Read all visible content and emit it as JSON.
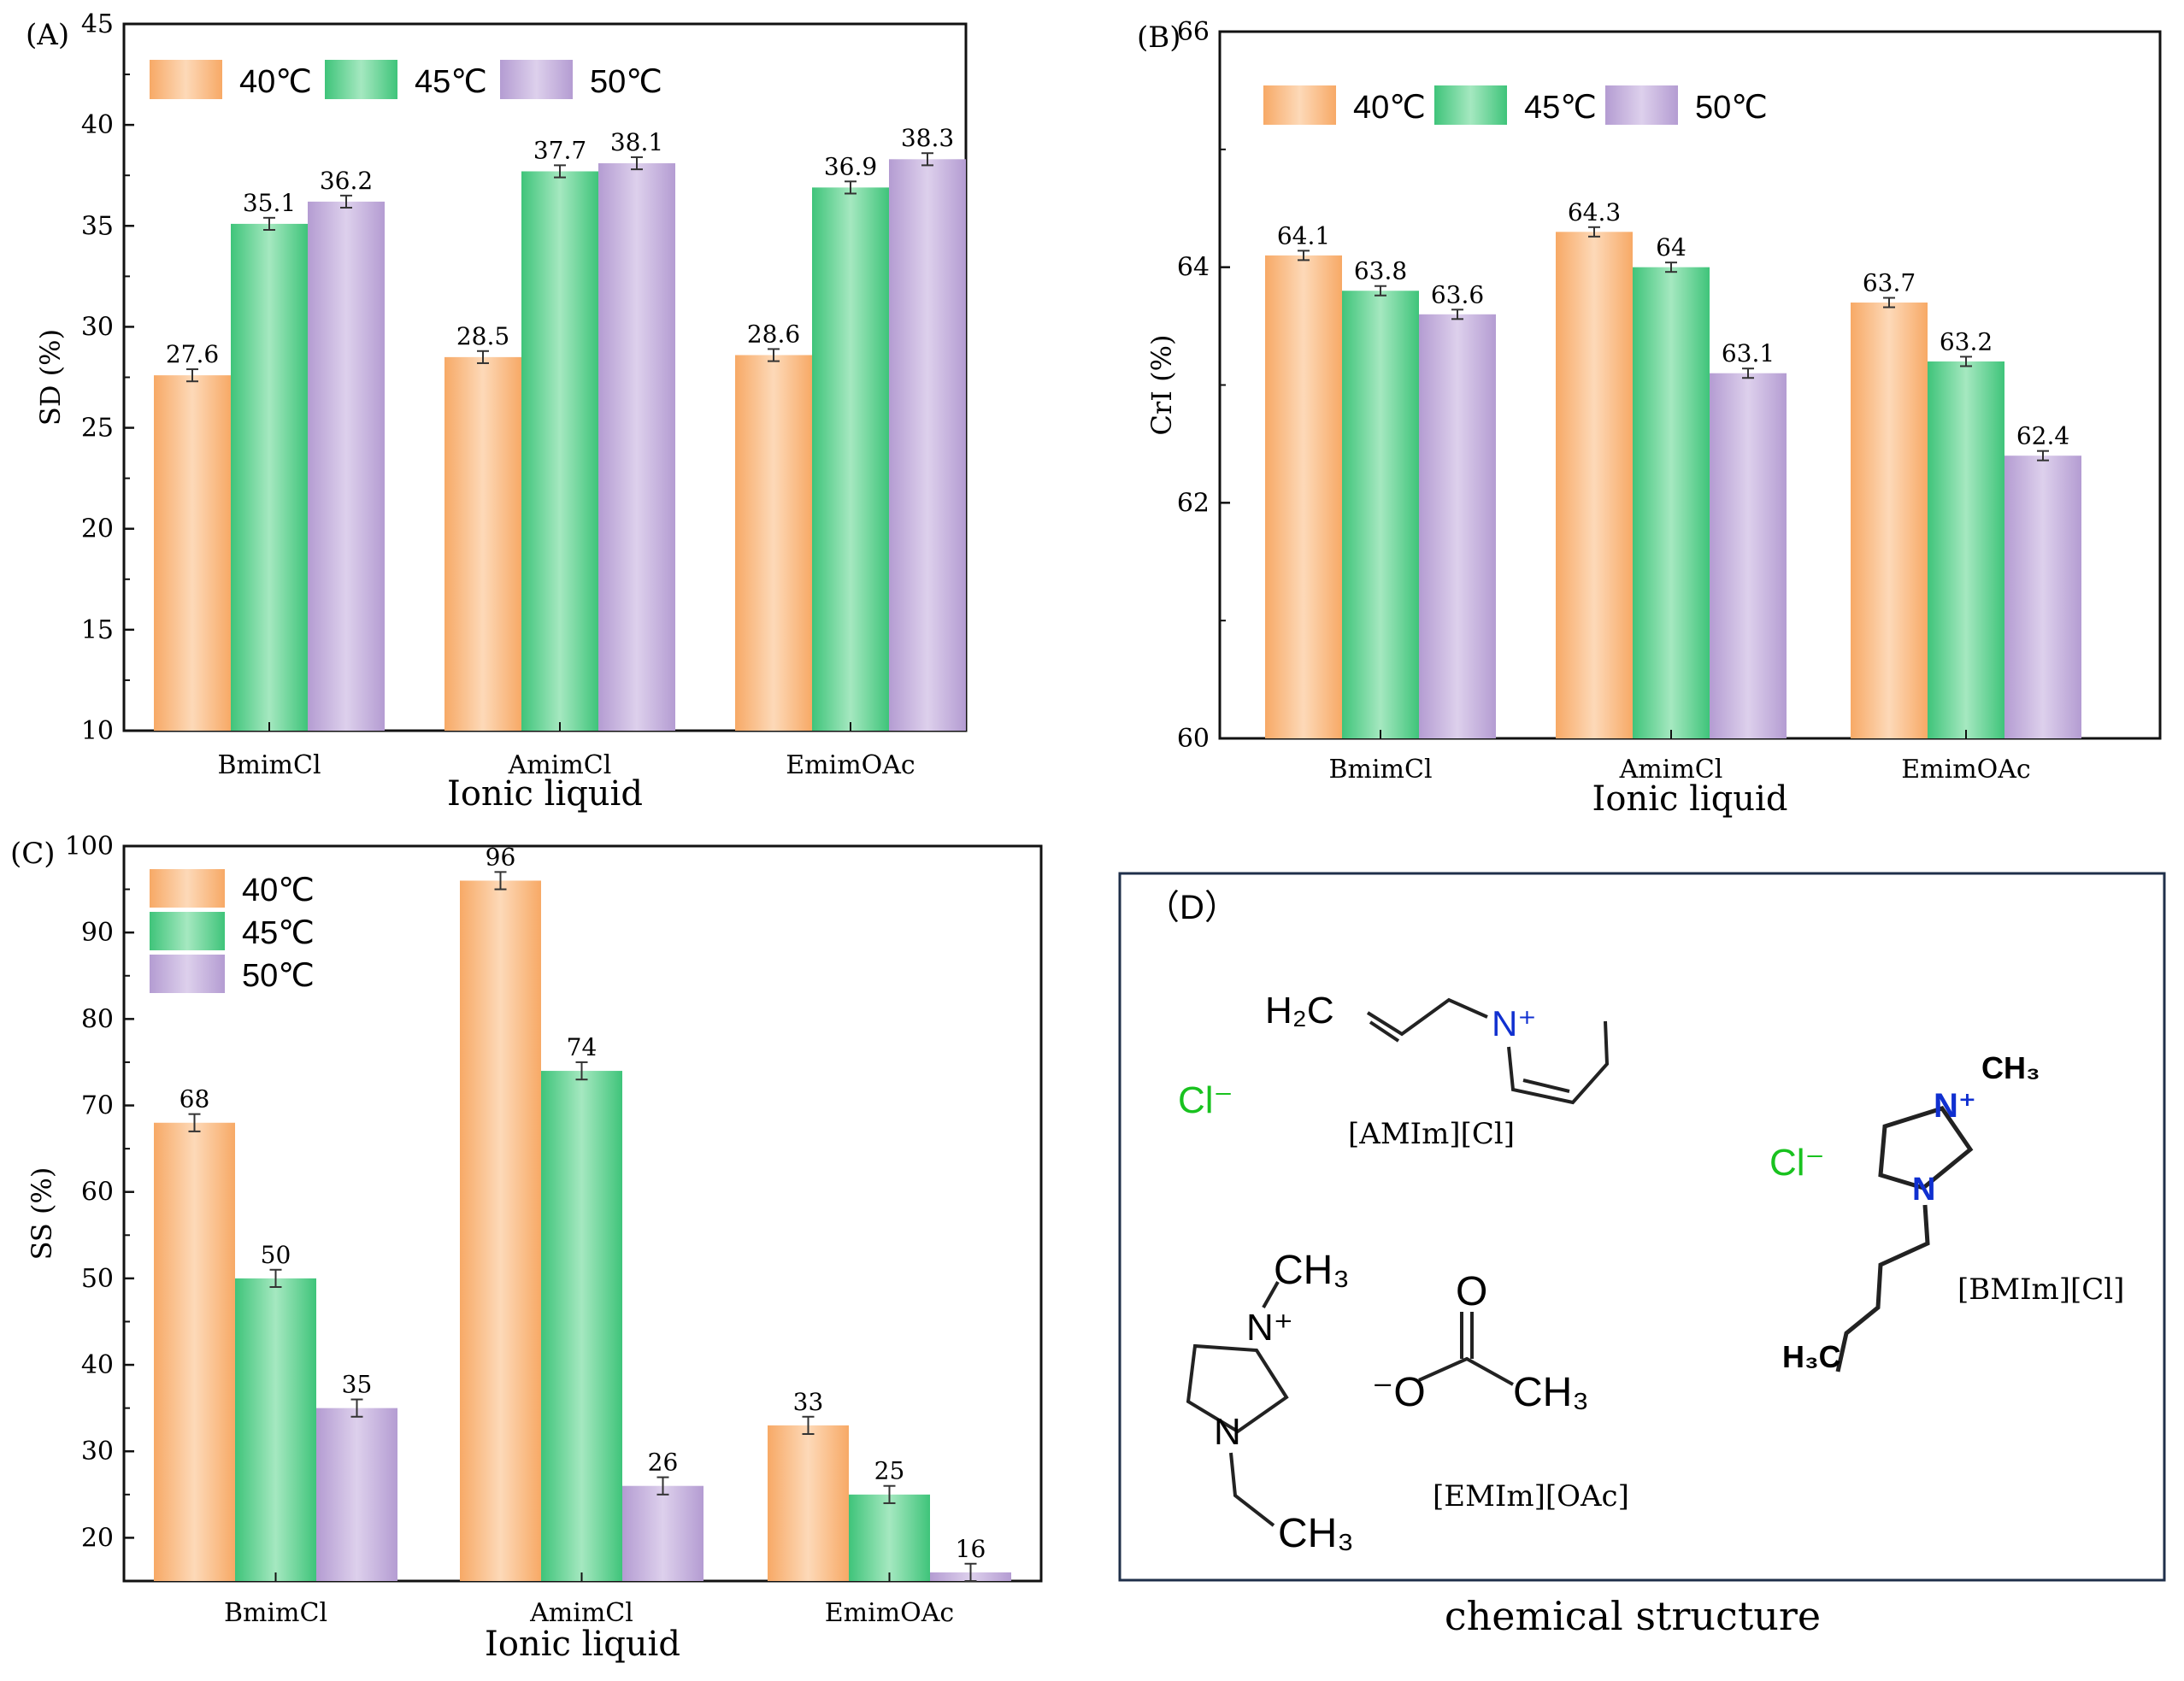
{
  "colors": {
    "orange": "#f7a966",
    "orange_light": "#fdd9b8",
    "green": "#3fc47a",
    "green_light": "#a5e8c0",
    "purple": "#b49cd2",
    "purple_light": "#ddd0ec",
    "frame": "#1f2f4a",
    "nitrogen": "#1030d0",
    "chloride": "#19c21f"
  },
  "chart_data": [
    {
      "id": "A",
      "panel_label": "(A)",
      "type": "bar",
      "xlabel": "Ionic liquid",
      "ylabel": "SD (%)",
      "ylim": [
        10,
        45
      ],
      "yticks": [
        "10",
        "15",
        "20",
        "25",
        "30",
        "35",
        "40",
        "45"
      ],
      "categories": [
        "BmimCl",
        "AmimCl",
        "EmimOAc"
      ],
      "legend_position": "top-left, horizontal",
      "series": [
        {
          "name": "40℃",
          "values": [
            27.6,
            28.5,
            28.6
          ],
          "errors": [
            0.3,
            0.3,
            0.3
          ],
          "labels": [
            "27.6",
            "28.5",
            "28.6"
          ]
        },
        {
          "name": "45℃",
          "values": [
            35.1,
            37.7,
            36.9
          ],
          "errors": [
            0.3,
            0.3,
            0.3
          ],
          "labels": [
            "35.1",
            "37.7",
            "36.9"
          ]
        },
        {
          "name": "50℃",
          "values": [
            36.2,
            38.1,
            38.3
          ],
          "errors": [
            0.3,
            0.3,
            0.3
          ],
          "labels": [
            "36.2",
            "38.1",
            "38.3"
          ]
        }
      ]
    },
    {
      "id": "B",
      "panel_label": "(B)",
      "type": "bar",
      "xlabel": "Ionic liquid",
      "ylabel": "CrI (%)",
      "ylim": [
        60,
        66
      ],
      "yticks": [
        "60",
        "62",
        "64",
        "66"
      ],
      "categories": [
        "BmimCl",
        "AmimCl",
        "EmimOAc"
      ],
      "legend_position": "top-left, horizontal",
      "series": [
        {
          "name": "40℃",
          "values": [
            64.1,
            64.3,
            63.7
          ],
          "errors": [
            0.04,
            0.04,
            0.04
          ],
          "labels": [
            "64.1",
            "64.3",
            "63.7"
          ]
        },
        {
          "name": "45℃",
          "values": [
            63.8,
            64.0,
            63.2
          ],
          "errors": [
            0.04,
            0.04,
            0.04
          ],
          "labels": [
            "63.8",
            "64",
            "63.2"
          ]
        },
        {
          "name": "50℃",
          "values": [
            63.6,
            63.1,
            62.4
          ],
          "errors": [
            0.04,
            0.04,
            0.04
          ],
          "labels": [
            "63.6",
            "63.1",
            "62.4"
          ]
        }
      ]
    },
    {
      "id": "C",
      "panel_label": "(C)",
      "type": "bar",
      "xlabel": "Ionic liquid",
      "ylabel": "SS (%)",
      "ylim": [
        15,
        100
      ],
      "yticks": [
        "20",
        "30",
        "40",
        "50",
        "60",
        "70",
        "80",
        "90",
        "100"
      ],
      "categories": [
        "BmimCl",
        "AmimCl",
        "EmimOAc"
      ],
      "legend_position": "top-left, vertical",
      "series": [
        {
          "name": "40℃",
          "values": [
            68,
            96,
            33
          ],
          "errors": [
            1.0,
            1.0,
            1.0
          ],
          "labels": [
            "68",
            "96",
            "33"
          ]
        },
        {
          "name": "45℃",
          "values": [
            50,
            74,
            25
          ],
          "errors": [
            1.0,
            1.0,
            1.0
          ],
          "labels": [
            "50",
            "74",
            "25"
          ]
        },
        {
          "name": "50℃",
          "values": [
            35,
            26,
            16
          ],
          "errors": [
            1.0,
            1.0,
            1.0
          ],
          "labels": [
            "35",
            "26",
            "16"
          ]
        }
      ]
    }
  ],
  "panel_d": {
    "label": "（D）",
    "caption": "chemical structure",
    "amim": {
      "h2c": "H₂C",
      "n_plus": "N⁺",
      "anion": "Cl⁻",
      "name": "[AMIm][Cl]"
    },
    "bmim": {
      "ch3": "CH₃",
      "n_plus": "N⁺",
      "n": "N",
      "h3c": "H₃C",
      "anion": "Cl⁻",
      "name": "[BMIm][Cl]"
    },
    "emim": {
      "ch3_top": "CH₃",
      "n_plus": "N⁺",
      "n": "N",
      "ch3_bottom": "CH₃",
      "name": "[EMIm][OAc]"
    },
    "acetate": {
      "o_double": "O",
      "o_minus": "⁻O",
      "ch3": "CH₃"
    }
  }
}
